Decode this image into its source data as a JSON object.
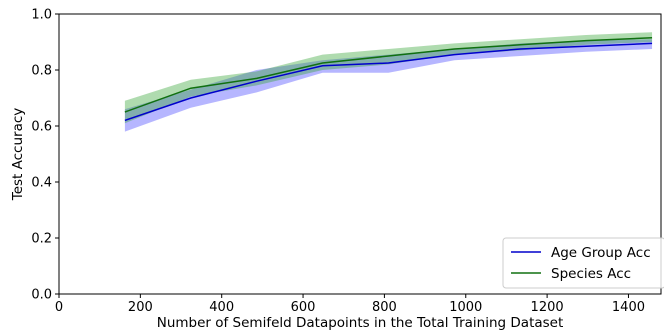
{
  "chart_data": {
    "type": "line",
    "title": "",
    "xlabel": "Number of Semifeld Datapoints in the Total Training Dataset",
    "ylabel": "Test Accuracy",
    "xlim": [
      0,
      1480
    ],
    "ylim": [
      0.0,
      1.0
    ],
    "xticks": [
      0,
      200,
      400,
      600,
      800,
      1000,
      1200,
      1400
    ],
    "yticks": [
      0.0,
      0.2,
      0.4,
      0.6,
      0.8,
      1.0
    ],
    "ytick_labels": [
      "0.0",
      "0.2",
      "0.4",
      "0.6",
      "0.8",
      "1.0"
    ],
    "grid": false,
    "legend_position": "lower-right",
    "x": [
      162,
      324,
      486,
      648,
      810,
      972,
      1134,
      1296,
      1458
    ],
    "series": [
      {
        "name": "Age Group Acc",
        "color": "#0000cc",
        "band_color": "#4040ff",
        "values": [
          0.62,
          0.7,
          0.76,
          0.815,
          0.825,
          0.855,
          0.875,
          0.885,
          0.895
        ],
        "lower": [
          0.58,
          0.665,
          0.72,
          0.79,
          0.79,
          0.835,
          0.85,
          0.865,
          0.875
        ],
        "upper": [
          0.66,
          0.73,
          0.8,
          0.835,
          0.855,
          0.875,
          0.895,
          0.905,
          0.91
        ]
      },
      {
        "name": "Species Acc",
        "color": "#107010",
        "band_color": "#2ca02c",
        "values": [
          0.65,
          0.735,
          0.77,
          0.825,
          0.85,
          0.875,
          0.89,
          0.905,
          0.915
        ],
        "lower": [
          0.61,
          0.705,
          0.745,
          0.8,
          0.82,
          0.855,
          0.87,
          0.89,
          0.9
        ],
        "upper": [
          0.69,
          0.765,
          0.795,
          0.855,
          0.875,
          0.895,
          0.91,
          0.925,
          0.935
        ]
      }
    ]
  }
}
